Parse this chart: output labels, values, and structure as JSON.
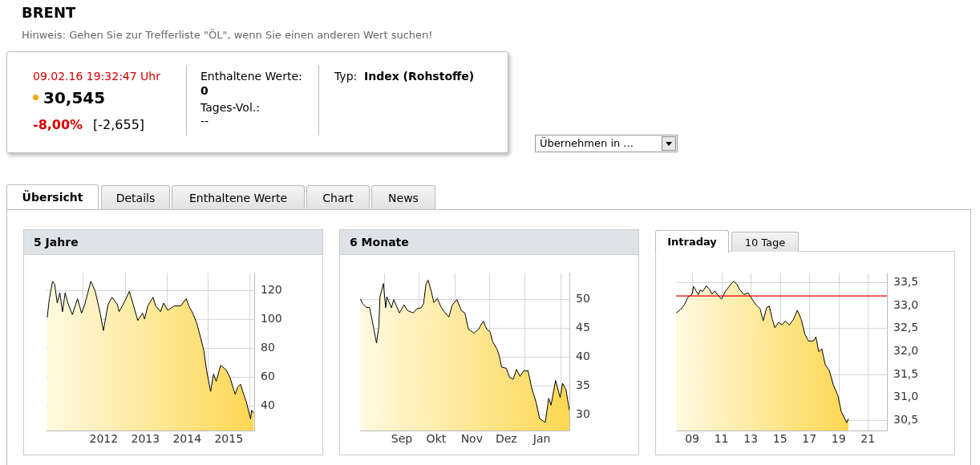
{
  "chart_data": [
    {
      "type": "other",
      "title": "BRENT",
      "subtitle": "Hinweis: Gehen Sie zur Trefferliste \"ÖL\", wenn Sie einen anderen Wert suchen!",
      "annotations": [
        "09.02.16  19:32:47 Uhr",
        "30,545",
        "-8,00%",
        "[-2,655]",
        "Enthaltene Werte:",
        "0",
        "Tages-Vol.:",
        "--",
        "Typ:",
        "Index (Rohstoffe)",
        "Übernehmen in ...",
        "Übersicht",
        "Details",
        "Enthaltene Werte",
        "Chart",
        "News"
      ]
    },
    {
      "type": "area",
      "title": "5 Jahre",
      "grid": true,
      "xlim": [
        "2011-02-09",
        "2016-02-09"
      ],
      "ylim": [
        23,
        132
      ],
      "yticks": [
        40,
        60,
        80,
        100,
        120
      ],
      "xticks": [
        {
          "value": "2012-01-01",
          "label": null
        },
        {
          "value": "2012-07-01",
          "label": "2012"
        },
        {
          "value": "2013-01-01",
          "label": null
        },
        {
          "value": "2013-07-01",
          "label": "2013"
        },
        {
          "value": "2014-01-01",
          "label": null
        },
        {
          "value": "2014-07-01",
          "label": "2014"
        },
        {
          "value": "2015-01-01",
          "label": null
        },
        {
          "value": "2015-07-01",
          "label": "2015"
        },
        {
          "value": "2016-01-01",
          "label": null
        }
      ],
      "x": [
        "2011-02-22",
        "2011-03-13",
        "2011-04-10",
        "2011-04-28",
        "2011-05-21",
        "2011-06-13",
        "2011-07-06",
        "2011-07-29",
        "2011-08-26",
        "2011-09-30",
        "2011-11-15",
        "2011-12-20",
        "2012-01-17",
        "2012-03-10",
        "2012-04-18",
        "2012-05-31",
        "2012-06-28",
        "2012-08-08",
        "2012-09-12",
        "2012-10-28",
        "2012-11-13",
        "2013-01-06",
        "2013-02-10",
        "2013-03-16",
        "2013-04-25",
        "2013-06-06",
        "2013-06-24",
        "2013-07-22",
        "2013-09-06",
        "2013-09-29",
        "2013-11-10",
        "2013-12-08",
        "2014-01-12",
        "2014-03-10",
        "2014-05-07",
        "2014-06-23",
        "2014-07-16",
        "2014-08-20",
        "2014-09-24",
        "2014-10-28",
        "2014-11-25",
        "2014-12-18",
        "2015-01-23",
        "2015-02-18",
        "2015-03-13",
        "2015-04-21",
        "2015-06-06",
        "2015-07-10",
        "2015-08-26",
        "2015-09-18",
        "2015-10-12",
        "2015-11-04",
        "2015-12-01",
        "2016-01-08",
        "2016-01-17",
        "2016-02-05"
      ],
      "series": [
        {
          "color": "#fdd752",
          "values": [
            101,
            114,
            126,
            124,
            111,
            118,
            105,
            118,
            110,
            103,
            114,
            104,
            110,
            126,
            119,
            104,
            92,
            110,
            115,
            110,
            105,
            113,
            119,
            110,
            99,
            104,
            100,
            109,
            115,
            109,
            105,
            111,
            106,
            109,
            109,
            114,
            109,
            104,
            97,
            87,
            78,
            65,
            50,
            62,
            57,
            68,
            65,
            60,
            48,
            53,
            55,
            49,
            43,
            31,
            37,
            35
          ]
        }
      ]
    },
    {
      "type": "area",
      "title": "6 Monate",
      "grid": true,
      "xlim": [
        "2015-08-10",
        "2016-02-09"
      ],
      "ylim": [
        27.2,
        54.6
      ],
      "yticks": [
        30,
        35,
        40,
        45,
        50
      ],
      "xticks": [
        {
          "value": "2015-09-01",
          "label": null
        },
        {
          "value": "2015-09-16",
          "label": "Sep"
        },
        {
          "value": "2015-10-01",
          "label": null
        },
        {
          "value": "2015-10-16",
          "label": "Okt"
        },
        {
          "value": "2015-11-01",
          "label": null
        },
        {
          "value": "2015-11-16",
          "label": "Nov"
        },
        {
          "value": "2015-12-01",
          "label": null
        },
        {
          "value": "2015-12-16",
          "label": "Dez"
        },
        {
          "value": "2016-01-01",
          "label": null
        },
        {
          "value": "2016-01-16",
          "label": "Jan"
        },
        {
          "value": "2016-02-01",
          "label": null
        }
      ],
      "x": [
        "2015-08-11",
        "2015-08-13",
        "2015-08-16",
        "2015-08-19",
        "2015-08-22",
        "2015-08-25",
        "2015-08-27",
        "2015-08-28",
        "2015-08-31",
        "2015-09-02",
        "2015-09-03",
        "2015-09-07",
        "2015-09-09",
        "2015-09-12",
        "2015-09-14",
        "2015-09-18",
        "2015-09-21",
        "2015-09-26",
        "2015-09-29",
        "2015-10-03",
        "2015-10-05",
        "2015-10-07",
        "2015-10-09",
        "2015-10-12",
        "2015-10-14",
        "2015-10-17",
        "2015-10-20",
        "2015-10-23",
        "2015-10-27",
        "2015-10-30",
        "2015-11-03",
        "2015-11-07",
        "2015-11-10",
        "2015-11-13",
        "2015-11-18",
        "2015-11-22",
        "2015-11-26",
        "2015-11-29",
        "2015-12-02",
        "2015-12-04",
        "2015-12-08",
        "2015-12-10",
        "2015-12-12",
        "2015-12-16",
        "2015-12-19",
        "2015-12-22",
        "2015-12-25",
        "2015-12-28",
        "2015-12-31",
        "2016-01-04",
        "2016-01-07",
        "2016-01-11",
        "2016-01-14",
        "2016-01-19",
        "2016-01-22",
        "2016-01-24",
        "2016-01-28",
        "2016-02-01",
        "2016-02-03",
        "2016-02-06",
        "2016-02-09"
      ],
      "series": [
        {
          "color": "#fdd752",
          "values": [
            50.0,
            49.2,
            48.6,
            48.5,
            45.5,
            42.4,
            45.2,
            50.4,
            52.7,
            48.5,
            50.4,
            48.5,
            49.9,
            48.5,
            47.6,
            49.0,
            48.0,
            47.6,
            48.3,
            48.5,
            49.2,
            52.5,
            53.3,
            51.1,
            49.4,
            50.1,
            48.7,
            47.8,
            46.9,
            49.0,
            49.9,
            48.0,
            47.6,
            44.8,
            44.1,
            44.8,
            46.2,
            44.8,
            44.3,
            42.7,
            41.3,
            40.1,
            38.2,
            38.0,
            36.4,
            36.1,
            37.8,
            36.6,
            37.5,
            37.6,
            34.7,
            32.1,
            29.3,
            28.6,
            32.8,
            31.6,
            35.9,
            32.9,
            35.4,
            34.3,
            30.7
          ]
        }
      ]
    },
    {
      "type": "area",
      "title": "Intraday",
      "annotations": [
        "10 Tage"
      ],
      "grid": true,
      "xlim": [
        7.9,
        22.3
      ],
      "ylim": [
        30.27,
        33.71
      ],
      "xticks": [
        {
          "value": 9,
          "label": "09"
        },
        11,
        13,
        15,
        17,
        19,
        21
      ],
      "yticks": [
        {
          "value": 30.5,
          "label": "30,5"
        },
        {
          "value": 31,
          "label": "31,0"
        },
        {
          "value": 31.5,
          "label": "31,5"
        },
        {
          "value": 32,
          "label": "32,0"
        },
        {
          "value": 32.5,
          "label": "32,5"
        },
        {
          "value": 33,
          "label": "33,0"
        },
        {
          "value": 33.5,
          "label": "33,5"
        }
      ],
      "ref_lines": [
        {
          "axis": "y",
          "value": 33.2,
          "color": "#e00000"
        }
      ],
      "x": [
        7.91,
        8.18,
        8.45,
        8.73,
        9.0,
        9.09,
        9.27,
        9.42,
        9.55,
        9.73,
        9.96,
        10.18,
        10.36,
        10.55,
        10.73,
        11.0,
        11.27,
        11.55,
        11.82,
        12.04,
        12.27,
        12.55,
        12.82,
        13.09,
        13.36,
        13.64,
        13.85,
        14.09,
        14.27,
        14.45,
        14.64,
        14.91,
        15.13,
        15.36,
        15.64,
        15.91,
        16.18,
        16.45,
        16.69,
        16.95,
        17.27,
        17.45,
        17.64,
        17.85,
        18.09,
        18.36,
        18.64,
        18.95,
        19.18,
        19.55,
        19.67
      ],
      "series": [
        {
          "color": "#fdd752",
          "values": [
            32.83,
            32.9,
            33.0,
            33.18,
            33.24,
            33.41,
            33.31,
            33.23,
            33.33,
            33.3,
            33.42,
            33.35,
            33.24,
            33.31,
            33.23,
            33.13,
            33.3,
            33.42,
            33.52,
            33.46,
            33.33,
            33.23,
            33.27,
            33.13,
            33.01,
            32.92,
            32.66,
            32.95,
            32.98,
            32.72,
            32.51,
            32.63,
            32.57,
            32.65,
            32.57,
            32.69,
            32.89,
            32.69,
            32.37,
            32.22,
            32.22,
            32.31,
            31.99,
            32.05,
            31.7,
            31.58,
            31.26,
            31.03,
            30.68,
            30.44,
            30.53
          ]
        }
      ]
    }
  ]
}
